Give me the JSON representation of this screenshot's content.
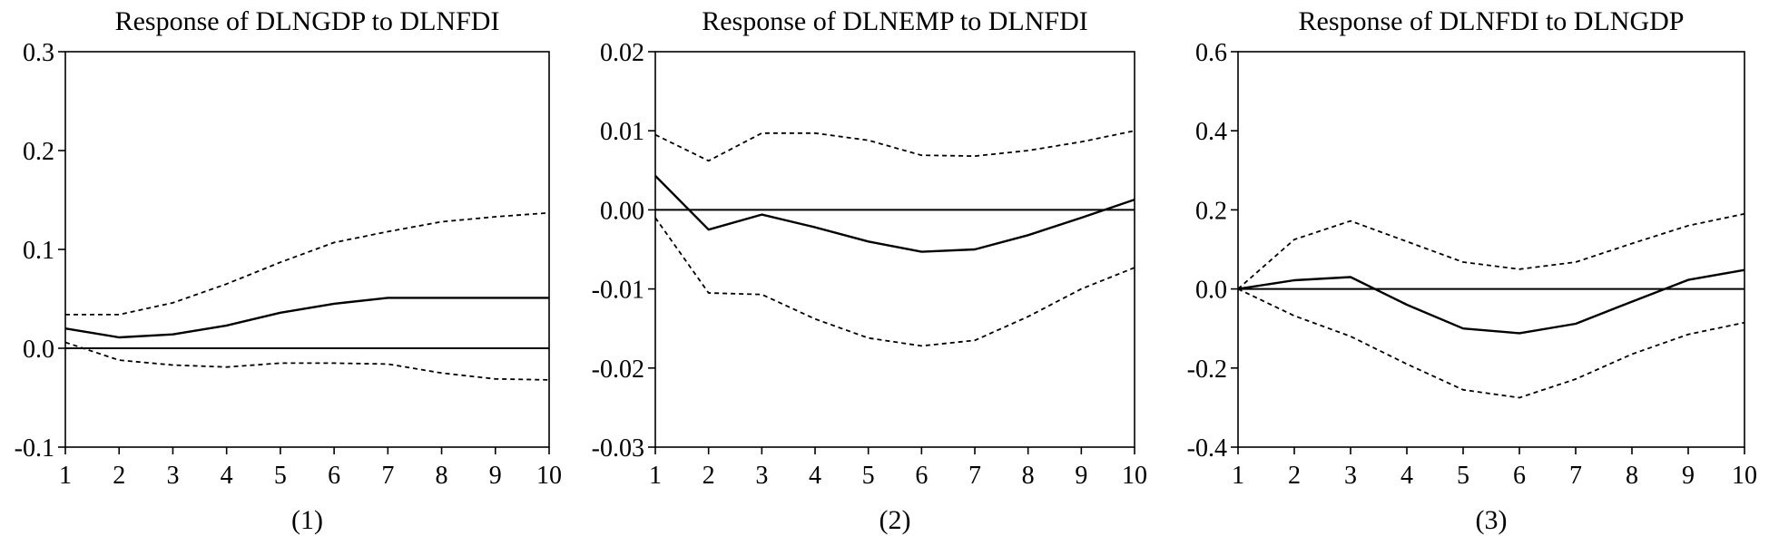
{
  "chart_data": [
    {
      "type": "line",
      "title": "Response of DLNGDP to DLNFDI",
      "caption": "(1)",
      "x": [
        1,
        2,
        3,
        4,
        5,
        6,
        7,
        8,
        9,
        10
      ],
      "xlim": [
        1,
        10
      ],
      "ylim": [
        -0.1,
        0.3
      ],
      "yticks": [
        "-0.1",
        "0.0",
        "0.1",
        "0.2",
        "0.3"
      ],
      "xticks": [
        "1",
        "2",
        "3",
        "4",
        "5",
        "6",
        "7",
        "8",
        "9",
        "10"
      ],
      "zero_line": true,
      "series": [
        {
          "style": "solid",
          "values": [
            0.02,
            0.011,
            0.014,
            0.023,
            0.036,
            0.045,
            0.051,
            0.051,
            0.051,
            0.051
          ]
        },
        {
          "style": "dashed",
          "values": [
            0.034,
            0.034,
            0.046,
            0.065,
            0.087,
            0.107,
            0.118,
            0.128,
            0.133,
            0.137
          ]
        },
        {
          "style": "dashed",
          "values": [
            0.006,
            -0.012,
            -0.017,
            -0.019,
            -0.015,
            -0.015,
            -0.016,
            -0.025,
            -0.031,
            -0.032
          ]
        }
      ]
    },
    {
      "type": "line",
      "title": "Response of DLNEMP to DLNFDI",
      "caption": "(2)",
      "x": [
        1,
        2,
        3,
        4,
        5,
        6,
        7,
        8,
        9,
        10
      ],
      "xlim": [
        1,
        10
      ],
      "ylim": [
        -0.03,
        0.02
      ],
      "yticks": [
        "-0.03",
        "-0.02",
        "-0.01",
        "0.00",
        "0.01",
        "0.02"
      ],
      "xticks": [
        "1",
        "2",
        "3",
        "4",
        "5",
        "6",
        "7",
        "8",
        "9",
        "10"
      ],
      "zero_line": true,
      "series": [
        {
          "style": "solid",
          "values": [
            0.0043,
            -0.0025,
            -0.0006,
            -0.0022,
            -0.004,
            -0.0053,
            -0.005,
            -0.0032,
            -0.001,
            0.0013
          ]
        },
        {
          "style": "dashed",
          "values": [
            0.0095,
            0.0062,
            0.0097,
            0.0097,
            0.0088,
            0.0069,
            0.0068,
            0.0075,
            0.0086,
            0.01
          ]
        },
        {
          "style": "dashed",
          "values": [
            -0.001,
            -0.0105,
            -0.0107,
            -0.0138,
            -0.0162,
            -0.0172,
            -0.0165,
            -0.0135,
            -0.01,
            -0.0073
          ]
        }
      ]
    },
    {
      "type": "line",
      "title": "Response of DLNFDI to DLNGDP",
      "caption": "(3)",
      "x": [
        1,
        2,
        3,
        4,
        5,
        6,
        7,
        8,
        9,
        10
      ],
      "xlim": [
        1,
        10
      ],
      "ylim": [
        -0.4,
        0.6
      ],
      "yticks": [
        "-0.4",
        "-0.2",
        "0.0",
        "0.2",
        "0.4",
        "0.6"
      ],
      "xticks": [
        "1",
        "2",
        "3",
        "4",
        "5",
        "6",
        "7",
        "8",
        "9",
        "10"
      ],
      "zero_line": true,
      "series": [
        {
          "style": "solid",
          "values": [
            0.0,
            0.022,
            0.03,
            -0.04,
            -0.1,
            -0.112,
            -0.088,
            -0.032,
            0.023,
            0.048
          ]
        },
        {
          "style": "dashed",
          "values": [
            0.0,
            0.125,
            0.172,
            0.12,
            0.068,
            0.05,
            0.068,
            0.115,
            0.16,
            0.19
          ]
        },
        {
          "style": "dashed",
          "values": [
            0.0,
            -0.068,
            -0.12,
            -0.19,
            -0.255,
            -0.275,
            -0.228,
            -0.165,
            -0.115,
            -0.085
          ]
        }
      ]
    }
  ]
}
